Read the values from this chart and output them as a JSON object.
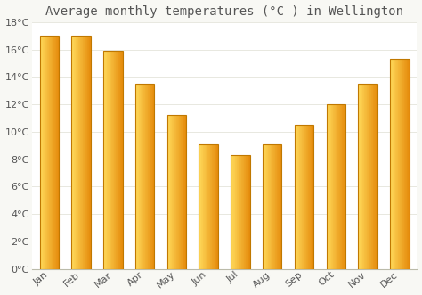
{
  "title": "Average monthly temperatures (°C ) in Wellington",
  "months": [
    "Jan",
    "Feb",
    "Mar",
    "Apr",
    "May",
    "Jun",
    "Jul",
    "Aug",
    "Sep",
    "Oct",
    "Nov",
    "Dec"
  ],
  "values": [
    17.0,
    17.0,
    15.9,
    13.5,
    11.2,
    9.1,
    8.3,
    9.1,
    10.5,
    12.0,
    13.5,
    15.3
  ],
  "bar_color_main": "#FFA500",
  "bar_color_light": "#FFD060",
  "bar_color_dark": "#D48000",
  "bar_edge_color": "#C07800",
  "background_color": "#f8f8f4",
  "plot_bg_color": "#ffffff",
  "ylim": [
    0,
    18
  ],
  "yticks": [
    0,
    2,
    4,
    6,
    8,
    10,
    12,
    14,
    16,
    18
  ],
  "ytick_labels": [
    "0°C",
    "2°C",
    "4°C",
    "6°C",
    "8°C",
    "10°C",
    "12°C",
    "14°C",
    "16°C",
    "18°C"
  ],
  "title_fontsize": 10,
  "tick_fontsize": 8,
  "grid_color": "#e8e8e0",
  "font_color": "#555555",
  "bar_width": 0.6
}
